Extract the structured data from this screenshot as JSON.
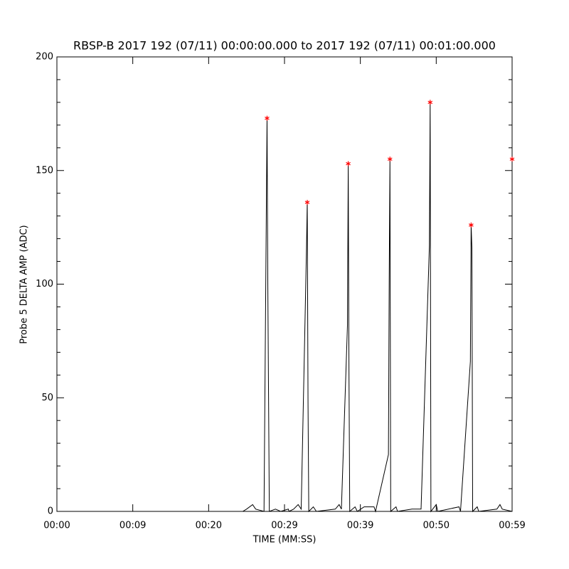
{
  "chart_data": {
    "type": "line",
    "title": "RBSP-B 2017 192 (07/11) 00:00:00.000 to 2017 192 (07/11) 00:01:00.000",
    "xlabel": "TIME (MM:SS)",
    "ylabel": "Probe 5 DELTA AMP (ADC)",
    "xlim": [
      0,
      60
    ],
    "ylim": [
      0,
      200
    ],
    "xticks": [
      {
        "value": 0,
        "label": "00:00"
      },
      {
        "value": 10,
        "label": "00:09"
      },
      {
        "value": 20,
        "label": "00:20"
      },
      {
        "value": 30,
        "label": "00:29"
      },
      {
        "value": 40,
        "label": "00:39"
      },
      {
        "value": 50,
        "label": "00:50"
      },
      {
        "value": 60,
        "label": "00:59"
      }
    ],
    "yticks": [
      0,
      50,
      100,
      150,
      200
    ],
    "yminor": 5,
    "series": [
      {
        "color": "#000000",
        "x": [
          0,
          24.5,
          25,
          25.8,
          26.2,
          27.3,
          27.6,
          27.7,
          27.8,
          28,
          28.8,
          29.5,
          30.5,
          30.6,
          31.2,
          31.8,
          32.2,
          32.9,
          33.0,
          33.1,
          33.2,
          33.8,
          34.2,
          36.7,
          37.2,
          37.5,
          38.3,
          38.4,
          38.5,
          38.6,
          39.3,
          39.6,
          40.5,
          41.8,
          42,
          43.7,
          43.8,
          43.9,
          44.0,
          44.7,
          44.9,
          46.8,
          48,
          49.1,
          49.2,
          49.3,
          50,
          50.2,
          53,
          53.2,
          54.5,
          54.6,
          54.7,
          54.8,
          55.4,
          55.6,
          58,
          58.4,
          58.7,
          60
        ],
        "values": [
          0,
          0,
          1,
          3,
          1,
          0,
          130,
          173,
          100,
          0,
          1,
          0,
          1,
          0,
          1,
          3,
          1,
          116,
          136,
          48,
          0,
          2,
          0,
          1,
          3,
          1,
          82,
          153,
          60,
          0,
          2,
          0,
          2,
          2,
          0,
          25,
          102,
          155,
          0,
          2,
          0,
          1,
          1,
          117,
          180,
          0,
          3,
          0,
          2,
          0,
          66,
          126,
          116,
          0,
          2,
          0,
          1,
          3,
          1,
          0
        ]
      },
      {
        "color": "#ff0000",
        "marker": "asterisk",
        "x": [
          27.7,
          33.0,
          38.4,
          43.9,
          49.2,
          54.6,
          60
        ],
        "values": [
          173,
          136,
          153,
          155,
          180,
          126,
          155
        ]
      }
    ]
  }
}
